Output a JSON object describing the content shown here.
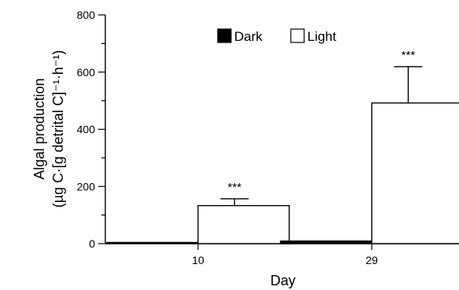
{
  "chart_data": {
    "type": "bar",
    "categories": [
      "10",
      "29"
    ],
    "series": [
      {
        "name": "Dark",
        "values": [
          3,
          9
        ],
        "errors": [
          null,
          null
        ],
        "color": "#000000"
      },
      {
        "name": "Light",
        "values": [
          133,
          492
        ],
        "errors": [
          24,
          127
        ],
        "color": "#ffffff"
      }
    ],
    "annotations": [
      {
        "category": "10",
        "series": "Light",
        "text": "***"
      },
      {
        "category": "29",
        "series": "Light",
        "text": "***"
      }
    ],
    "ylabel_line1": "Algal production",
    "ylabel_line2": "(µg C·[g detrital C]⁻¹·h⁻¹)",
    "xlabel": "Day",
    "ylim": [
      0,
      800
    ],
    "yticks": [
      0,
      200,
      400,
      600,
      800
    ],
    "yminor_step": 100,
    "grid": false,
    "legend_position": "top-center"
  }
}
